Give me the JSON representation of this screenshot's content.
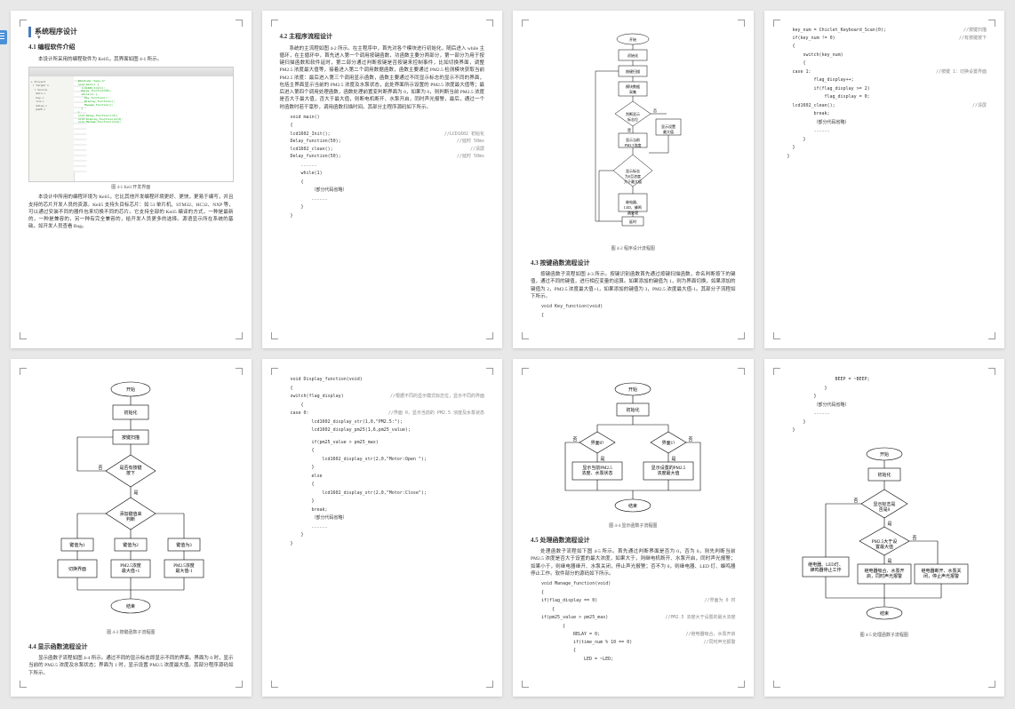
{
  "section_title": "系统程序设计",
  "p1": {
    "h2": "4.1 编程软件介绍",
    "caption": "图 4-1 Keil 开发界面",
    "para1": "本设计所采用的编程软件为 Keil5，其界面如图 4-1 所示。",
    "para2": "本设计中所用的编程环境为 Keil5，它比其他开发编程环境更好、更快，更易于编写，并且支持的芯片开发人员的资源。Keil5 支持头目标芯片：如 51 单片机、STM32、HC32、NXP 等，可以通过安装不同的器件包来切换不同的芯片。它支持全部的 Keil5 编译的方式，一种是最新的，一种是兼容的，另一种有完全兼容的，给开发人员更多的选择。源语显示所在系统的基础，如开发人员查看 Bug。"
  },
  "p2": {
    "h2": "4.2 主程序流程设计",
    "para1": "系统的主流程如图 4-2 所示。在主程序中，首先对各个模块进行初始化，随后进入 while 主循环，在主循环中，首先进入第一个调用按键函数，功函数主要分两部分，第一部分为用于按键扫描函数和软件延时，第二部分通过判断按键是否按键来控制事件，比如切换界面，调整 PM2.5 浓度最大值等，接着进入第二个调用数据函数，函数主要通过 PM2.5 检测模块获取当前 PM2.5 浓度：最后进入第三个调用显示函数，函数主要通过不同显示标志的显示不同的界面，包括主界面显示当前的 PM2.5 浓度及水泵状态，此处界面所示设置的 PM2.5 浓度最大值等；最后进入第四个调用处理函数，函数处理前置变判断界面为 0，如果为 0，则判断当前 PM2.5 浓度是否大于最大值，否大于最大值，则断电机断开、水泵开启，同时声光报警，最后，通过一个时函数时若干毫秒，调用函数扫描时间。其部分主程序源码如下所示。",
    "fn": "void main()",
    "lines": [
      {
        "l": "lcd1602_Init();",
        "r": "//LCD1602 初始化"
      },
      {
        "l": "Delay_function(50);",
        "r": "//延时 50ms"
      },
      {
        "l": "lcd1602_clean();",
        "r": "//清屏"
      },
      {
        "l": "Delay_function(50);",
        "r": "//延时 50ms"
      }
    ],
    "while": "while(1)",
    "omit": "（部分代码省略）"
  },
  "p3": {
    "caption": "图 4-2 程序设计流程图",
    "h2": "4.3 按键函数流程设计",
    "para1": "按键函数子流程如图 4-3 所示。按键识别函数首先通过按键扫描函数，命名判断按下的键值，通过不同的键值，进行相应变量的运算。如果添加的键值为 1，则为界面切换，如果添加的键值为 2，PM2.5 浓度最大值+1，如果添加的键值为 3，PM2.5 浓度最大值-1。其部分子流程如下所示。",
    "fn": "void Key_function(void)"
  },
  "p4": {
    "lines": [
      {
        "l": "key_num = Chiclet_Keyboard_Scan(0);",
        "r": "//按键扫描"
      },
      {
        "l": "if(key_num != 0)",
        "r": "//有按键按下"
      }
    ],
    "sw": "switch(key_num)",
    "case1": {
      "l": "case 1:",
      "r": "//按键 1：切换设置界面"
    },
    "flag": "flag_display++;",
    "ifflag": "if(flag_display >= 2)",
    "flagz": "flag_display = 0;",
    "clean": {
      "l": "lcd1602_clean();",
      "r": "//清屏"
    },
    "brk": "break;",
    "omit": "（部分代码省略）"
  },
  "p5": {
    "caption": "图 4-3 按键函数子流程图",
    "h2": "4.4 显示函数流程设计",
    "para1": "显示函数子流程如图 4-4 所示。通过不同的显示标志即显示不同的界面。界面为 0 时，显示当前的 PM2.5 浓度及水泵状态；界面为 1 时，显示设置 PM2.5 浓度最大值。其部分程序源码如下所示。",
    "flow": {
      "start": "开始",
      "init": "初始化",
      "scan": "按键扫描",
      "q1": "是否有按键\n按下",
      "y": "是",
      "n": "否",
      "q2": "添加键值来\n判断",
      "k1": "键值为1",
      "k2": "键值为2",
      "k3": "键值为3",
      "a1": "切换界面",
      "a2": "PM2.5浓度\n最大值+1",
      "a3": "PM2.5浓度\n最大值-1",
      "end": "结束"
    }
  },
  "p6": {
    "fn": "void Display_function(void)",
    "sw": {
      "l": "switch(flag_display)",
      "r": "//根据不同的显示模式标志位，显示不同的界面"
    },
    "case0": {
      "l": "case 0:",
      "r": "//界面 0，显示当前的 PM2.5 浓度及水泵状态"
    },
    "l1": "lcd1602_display_str(1,0,\"PM2.5:\");",
    "l2": "lcd1602_display_pm25(1,6,pm25_value);",
    "if1": "if(pm25_value > pm25_max)",
    "l3": "lcd1602_display_str(2,0,\"Motor:Open \");",
    "else": "else",
    "l4": "lcd1602_display_str(2,0,\"Motor:Close\");",
    "brk": "break;",
    "omit": "（部分代码省略）"
  },
  "p7": {
    "caption": "图 4-4 显示函数子流程图",
    "h2": "4.5 处理函数流程设计",
    "para1": "处理函数子流程如下图 4-5 所示。首先通过判断界面是否为 0，否为 0，则先判断当前 PM2.5 浓度是否大于设置的最大浓度，如果大于，则继电机断开、水泵开启，同时声光报警；如果小于，则继电器继开、水泵关闭，停止声光报警；否不为 0，则继电器、LED 灯、蜂鸣器停止工作。软件部分的源码如下所示。",
    "fn": "void Manage_function(void)",
    "lines": [
      {
        "l": "if(flag_display == 0)",
        "r": "//界面为 0 时"
      },
      {
        "l": "if(pm25_value > pm25_max)",
        "r": "//PM2.5 浓度大于设置的最大浓度"
      },
      {
        "l": "RELAY = 0;",
        "r": "//继电器吸合，水泵开启"
      },
      {
        "l": "if(time_num % 10 == 0)",
        "r": "//同时声光报警"
      }
    ],
    "ledline": "LED = ~LED;",
    "flow": {
      "start": "开始",
      "init": "初始化",
      "q1": "界面0?",
      "q2": "界面1?",
      "y": "是",
      "n": "否",
      "a1": "显示当前PM2.5\n浓度、水泵状态",
      "a2": "显示设置的PM2.5\n浓度最大值",
      "end": "结束"
    }
  },
  "p8": {
    "beep": "BEEP = ~BEEP;",
    "omit": "（部分代码省略）",
    "caption": "图 4-5 处理函数子流程图",
    "flow": {
      "start": "开始",
      "init": "初始化",
      "q1": "显示标志是\n否是0",
      "y": "是",
      "n": "否",
      "q2": "PM2.5大于设\n置最大值",
      "a0": "继电器、LED灯、\n蜂鸣器停止工作",
      "a1": "继电器吸合、水泵开\n启，同时声光报警",
      "a2": "继电器断开、水泵关\n闭，停止声光报警",
      "end": "结束"
    }
  },
  "flow_main": {
    "start": "开始",
    "init": "初始化",
    "b1": "按键扫描",
    "b2": "模块数据\n采集",
    "q1": "判断显示\n标志位",
    "y": "是",
    "n": "否",
    "d1": "显示当前\nPM2.5浓度",
    "d2": "显示设置\n最大值",
    "q2": "显示标志\n为0且浓度\n大于最大值",
    "d3": "继电器、\nLED、蜂鸣\n器处理",
    "d4": "延时"
  }
}
